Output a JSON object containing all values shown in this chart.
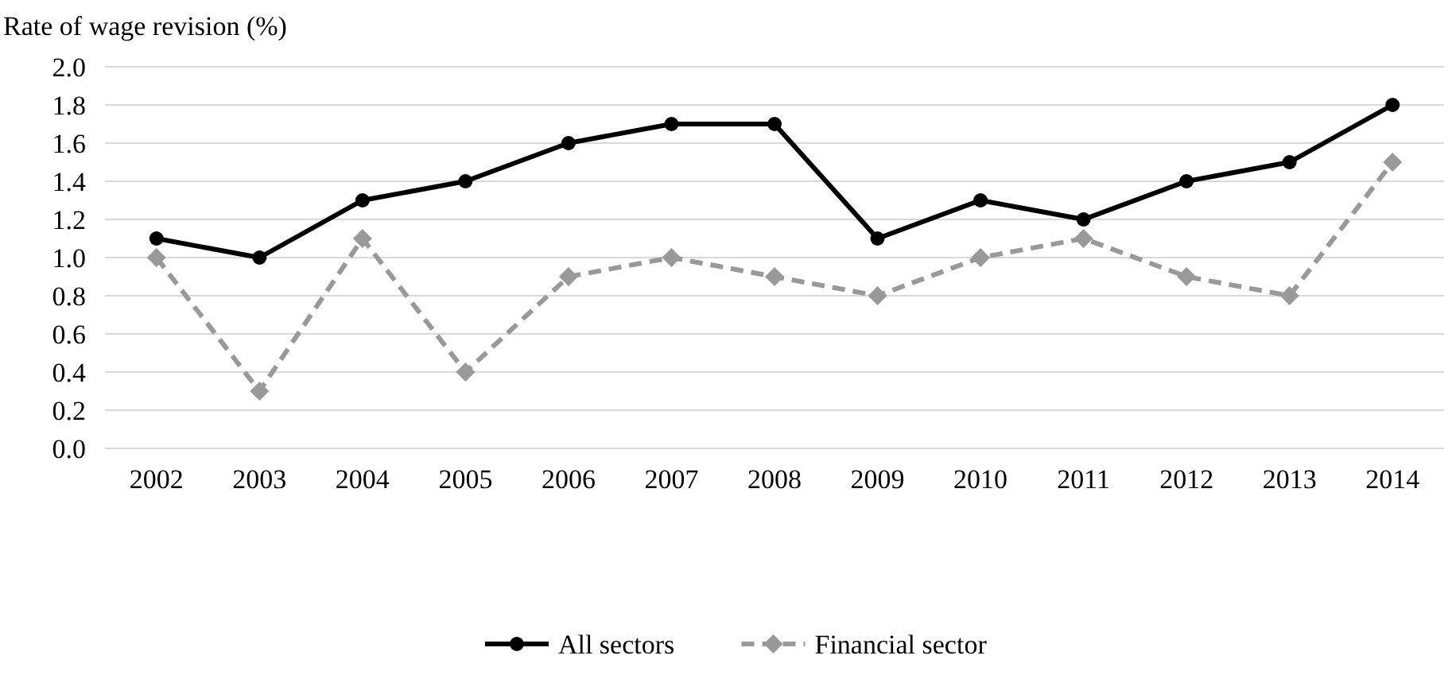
{
  "chart_data": {
    "type": "line",
    "ylabel": "Rate of wage revision (%)",
    "categories": [
      "2002",
      "2003",
      "2004",
      "2005",
      "2006",
      "2007",
      "2008",
      "2009",
      "2010",
      "2011",
      "2012",
      "2013",
      "2014"
    ],
    "series": [
      {
        "name": "All sectors",
        "color": "#000000",
        "marker": "circle",
        "line_style": "solid",
        "values": [
          1.1,
          1.0,
          1.3,
          1.4,
          1.6,
          1.7,
          1.7,
          1.1,
          1.3,
          1.2,
          1.4,
          1.5,
          1.8
        ]
      },
      {
        "name": "Financial sector",
        "color": "#999999",
        "marker": "diamond",
        "line_style": "dashed",
        "values": [
          1.0,
          0.3,
          1.1,
          0.4,
          0.9,
          1.0,
          0.9,
          0.8,
          1.0,
          1.1,
          0.9,
          0.8,
          1.5
        ]
      }
    ],
    "ylim": [
      0,
      2
    ],
    "yticks": [
      {
        "value": 0,
        "label": "0.0"
      },
      {
        "value": 0.2,
        "label": "0.2"
      },
      {
        "value": 0.4,
        "label": "0.4"
      },
      {
        "value": 0.6,
        "label": "0.6"
      },
      {
        "value": 0.8,
        "label": "0.8"
      },
      {
        "value": 1,
        "label": "1.0"
      },
      {
        "value": 1.2,
        "label": "1.2"
      },
      {
        "value": 1.4,
        "label": "1.4"
      },
      {
        "value": 1.6,
        "label": "1.6"
      },
      {
        "value": 1.8,
        "label": "1.8"
      },
      {
        "value": 2,
        "label": "2.0"
      }
    ],
    "grid": "y",
    "legend": "bottom"
  }
}
